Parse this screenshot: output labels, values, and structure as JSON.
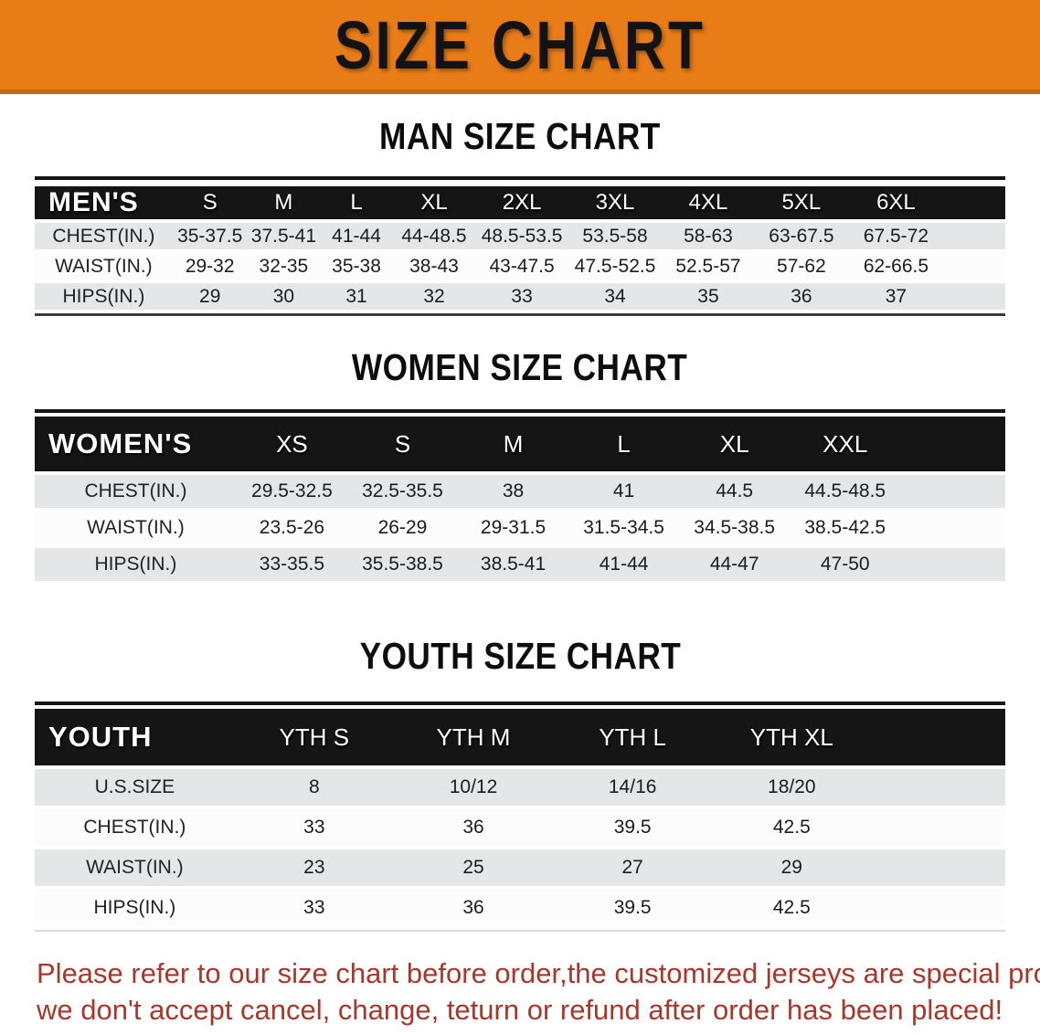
{
  "banner": {
    "title": "SIZE CHART"
  },
  "colors": {
    "banner_bg": "#E87D18",
    "banner_edge": "#C8680F",
    "table_header_bg": "#151515",
    "row_gray": "#E4E6E7",
    "row_white": "#FCFCFC",
    "note_red": "#A8372B"
  },
  "sections": [
    {
      "heading": "MAN SIZE CHART",
      "table": {
        "name": "mens",
        "header_label": "MEN'S",
        "sizes": [
          "S",
          "M",
          "L",
          "XL",
          "2XL",
          "3XL",
          "4XL",
          "5XL",
          "6XL"
        ],
        "rows": [
          {
            "label": "CHEST(IN.)",
            "values": [
              "35-37.5",
              "37.5-41",
              "41-44",
              "44-48.5",
              "48.5-53.5",
              "53.5-58",
              "58-63",
              "63-67.5",
              "67.5-72"
            ]
          },
          {
            "label": "WAIST(IN.)",
            "values": [
              "29-32",
              "32-35",
              "35-38",
              "38-43",
              "43-47.5",
              "47.5-52.5",
              "52.5-57",
              "57-62",
              "62-66.5"
            ]
          },
          {
            "label": "HIPS(IN.)",
            "values": [
              "29",
              "30",
              "31",
              "32",
              "33",
              "34",
              "35",
              "36",
              "37"
            ]
          }
        ]
      }
    },
    {
      "heading": "WOMEN SIZE CHART",
      "table": {
        "name": "womens",
        "header_label": "WOMEN'S",
        "sizes": [
          "XS",
          "S",
          "M",
          "L",
          "XL",
          "XXL"
        ],
        "rows": [
          {
            "label": "CHEST(IN.)",
            "values": [
              "29.5-32.5",
              "32.5-35.5",
              "38",
              "41",
              "44.5",
              "44.5-48.5"
            ]
          },
          {
            "label": "WAIST(IN.)",
            "values": [
              "23.5-26",
              "26-29",
              "29-31.5",
              "31.5-34.5",
              "34.5-38.5",
              "38.5-42.5"
            ]
          },
          {
            "label": "HIPS(IN.)",
            "values": [
              "33-35.5",
              "35.5-38.5",
              "38.5-41",
              "41-44",
              "44-47",
              "47-50"
            ]
          }
        ]
      }
    },
    {
      "heading": "YOUTH SIZE CHART",
      "table": {
        "name": "youth",
        "header_label": "YOUTH",
        "sizes": [
          "YTH S",
          "YTH M",
          "YTH L",
          "YTH XL"
        ],
        "rows": [
          {
            "label": "U.S.SIZE",
            "values": [
              "8",
              "10/12",
              "14/16",
              "18/20"
            ]
          },
          {
            "label": "CHEST(IN.)",
            "values": [
              "33",
              "36",
              "39.5",
              "42.5"
            ]
          },
          {
            "label": "WAIST(IN.)",
            "values": [
              "23",
              "25",
              "27",
              "29"
            ]
          },
          {
            "label": "HIPS(IN.)",
            "values": [
              "33",
              "36",
              "39.5",
              "42.5"
            ]
          }
        ]
      }
    }
  ],
  "footer": {
    "line1": "Please refer to our size chart before order,the customized jerseys are special products,",
    "line2": "we don't accept cancel, change, teturn or refund after order has been placed!"
  }
}
